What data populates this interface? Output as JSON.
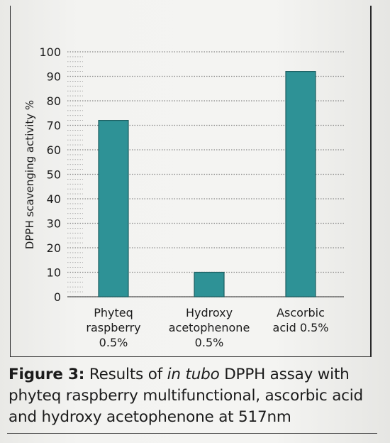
{
  "chart_data": {
    "type": "bar",
    "ylabel": "DPPH scavenging activity %",
    "ylim": [
      0,
      100
    ],
    "yticks": [
      0,
      10,
      20,
      30,
      40,
      50,
      60,
      70,
      80,
      90,
      100
    ],
    "categories": [
      [
        "Phyteq",
        "raspberry",
        "0.5%"
      ],
      [
        "Hydroxy",
        "acetophenone",
        "0.5%"
      ],
      [
        "Ascorbic",
        "acid 0.5%"
      ]
    ],
    "values": [
      72,
      10,
      92
    ],
    "bar_color": "#2e9296",
    "grid": true
  },
  "caption": {
    "label": "Figure 3:",
    "text_before": " Results of ",
    "italic": "in tubo",
    "text_after": " DPPH assay with phyteq raspberry multifunctional, ascorbic acid and hydroxy acetophenone at 517nm"
  }
}
